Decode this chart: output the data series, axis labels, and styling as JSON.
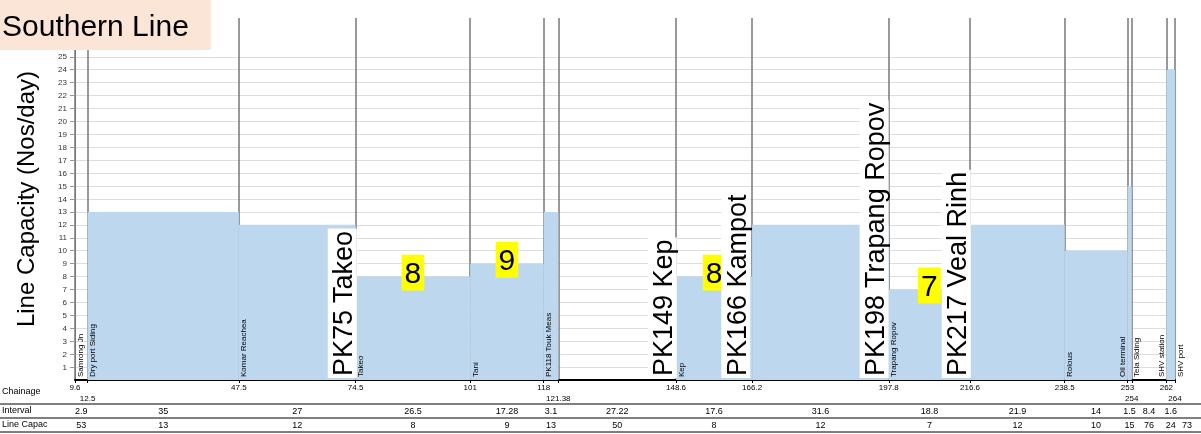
{
  "chart_data": {
    "type": "histogram",
    "title": "Southern Line",
    "ylabel": "Line Capacity (Nos/day)",
    "bins": [
      12.5,
      47.5,
      74.5,
      101,
      118,
      121.38,
      148.6,
      166.2,
      197.8,
      216.6,
      238.5,
      253,
      254,
      262,
      264
    ],
    "values": [
      13,
      12,
      8,
      9,
      13,
      null,
      8,
      12,
      7,
      12,
      10,
      15,
      null,
      24
    ],
    "value_labels": [
      null,
      null,
      "8",
      "9",
      null,
      null,
      "8",
      null,
      "7",
      null,
      null,
      null,
      null,
      null
    ],
    "color": "#bdd7ee",
    "xlim": [
      9.6,
      264
    ],
    "xticks": [
      9.6,
      {
        "value": 12.5,
        "label": null
      },
      47.5,
      74.5,
      101,
      118,
      {
        "value": 121.38,
        "label": null
      },
      148.6,
      166.2,
      197.8,
      216.6,
      238.5,
      253,
      {
        "value": 254,
        "label": null
      },
      262,
      {
        "value": 264,
        "label": null
      }
    ],
    "ylim": [
      0,
      28
    ],
    "yticks": [
      1,
      2,
      3,
      4,
      5,
      6,
      7,
      8,
      9,
      10,
      11,
      12,
      13,
      14,
      15,
      16,
      17,
      18,
      19,
      20,
      21,
      22,
      23,
      24,
      25
    ],
    "grid": true,
    "annotations": [
      "Chainage",
      "Interval",
      "Line Capac",
      "2.9",
      "35",
      "27",
      "26.5",
      "17.28",
      "3.1",
      "27.22",
      "17.6",
      "31.6",
      "18.8",
      "21.9",
      "14",
      "1.5",
      "8.4",
      "1.6",
      "53",
      "13",
      "12",
      "8",
      "9",
      "13",
      "50",
      "8",
      "12",
      "7",
      "12",
      "10",
      "15",
      "76",
      "24",
      "73",
      "12.5",
      "121.38",
      "254",
      "264",
      "Samrong Jn",
      {
        "text": "Dry port Siding",
        "x": 12.5,
        "y": 0
      },
      {
        "text": "Komar Reachea",
        "x": 47.5,
        "y": 0
      },
      {
        "text": "Takeo",
        "x": 74.5,
        "y": 0
      },
      {
        "text": "Tani",
        "x": 101,
        "y": 0
      },
      {
        "text": "Kep",
        "x": 148.6,
        "y": 0
      },
      {
        "text": "Trapang Ropov",
        "x": 197.8,
        "y": 0
      },
      {
        "text": "Rolous",
        "x": 238.5,
        "y": 0
      },
      {
        "text": "Oil terminal",
        "x": 253,
        "y": 0
      },
      {
        "text": "Tela Siding",
        "x": 254,
        "y": 0
      },
      {
        "text": "SHV station",
        "x": 262,
        "y": 0
      },
      {
        "text": "SHV port",
        "x": 264,
        "y": 0
      },
      {
        "text": "PK75 Takeo",
        "x": 75,
        "y": 0
      },
      {
        "text": "PK118 Touk Meas",
        "x": 118,
        "y": 0
      },
      {
        "text": "PK149 Kep",
        "x": 149,
        "y": 0
      },
      {
        "text": "PK166 Kampot",
        "x": 166,
        "y": 0
      },
      {
        "text": "PK198 Trapang Ropov",
        "x": 198,
        "y": 0
      },
      {
        "text": "PK217 Veal Rinh",
        "x": 217,
        "y": 0
      }
    ]
  }
}
